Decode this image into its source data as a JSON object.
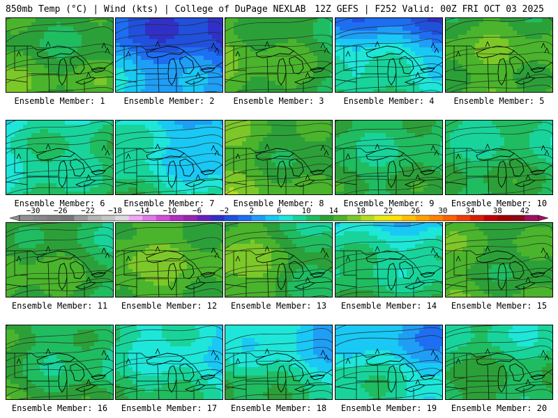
{
  "header": {
    "left": "850mb Temp (°C) | Wind (kts) | College of DuPage NEXLAB",
    "right": "12Z GEFS | F252 Valid: 00Z FRI OCT 03 2025"
  },
  "member_label_prefix": "Ensemble Member:",
  "members": [
    {
      "id": 1,
      "label": "Ensemble Member: 1",
      "west": 14,
      "east": 12,
      "north": 12,
      "south": 16
    },
    {
      "id": 2,
      "label": "Ensemble Member: 2",
      "west": 4,
      "east": -2,
      "north": -5,
      "south": 8
    },
    {
      "id": 3,
      "label": "Ensemble Member: 3",
      "west": 17,
      "east": 10,
      "north": 14,
      "south": 15
    },
    {
      "id": 4,
      "label": "Ensemble Member: 4",
      "west": 8,
      "east": 2,
      "north": -3,
      "south": 17
    },
    {
      "id": 5,
      "label": "Ensemble Member: 5",
      "west": 15,
      "east": 15,
      "north": 13,
      "south": 16
    },
    {
      "id": 6,
      "label": "Ensemble Member: 6",
      "west": 6,
      "east": 12,
      "north": 8,
      "south": 12
    },
    {
      "id": 7,
      "label": "Ensemble Member: 7",
      "west": 12,
      "east": 2,
      "north": 2,
      "south": 11
    },
    {
      "id": 8,
      "label": "Ensemble Member: 8",
      "west": 16,
      "east": 10,
      "north": 14,
      "south": 16
    },
    {
      "id": 9,
      "label": "Ensemble Member: 9",
      "west": 11,
      "east": 11,
      "north": 10,
      "south": 13
    },
    {
      "id": 10,
      "label": "Ensemble Member: 10",
      "west": 12,
      "east": 11,
      "north": 8,
      "south": 13
    },
    {
      "id": 11,
      "label": "Ensemble Member: 11",
      "west": 16,
      "east": 10,
      "north": 12,
      "south": 15
    },
    {
      "id": 12,
      "label": "Ensemble Member: 12",
      "west": 17,
      "east": 14,
      "north": 15,
      "south": 15
    },
    {
      "id": 13,
      "label": "Ensemble Member: 13",
      "west": 20,
      "east": 8,
      "north": 12,
      "south": 15
    },
    {
      "id": 14,
      "label": "Ensemble Member: 14",
      "west": 11,
      "east": 8,
      "north": 2,
      "south": 15
    },
    {
      "id": 15,
      "label": "Ensemble Member: 15",
      "west": 15,
      "east": 12,
      "north": 13,
      "south": 15
    },
    {
      "id": 16,
      "label": "Ensemble Member: 16",
      "west": 14,
      "east": 8,
      "north": 10,
      "south": 14
    },
    {
      "id": 17,
      "label": "Ensemble Member: 17",
      "west": 11,
      "east": 4,
      "north": 6,
      "south": 12
    },
    {
      "id": 18,
      "label": "Ensemble Member: 18",
      "west": 12,
      "east": 4,
      "north": 2,
      "south": 14
    },
    {
      "id": 19,
      "label": "Ensemble Member: 19",
      "west": 10,
      "east": 2,
      "north": 2,
      "south": 12
    },
    {
      "id": 20,
      "label": "Ensemble Member: 20",
      "west": 12,
      "east": 10,
      "north": 8,
      "south": 14
    }
  ],
  "colorbar": {
    "unit": "°C",
    "labels": [
      "−30",
      "−26",
      "−22",
      "−18",
      "−14",
      "−10",
      "−6",
      "−2",
      "2",
      "6",
      "10",
      "14",
      "18",
      "22",
      "26",
      "30",
      "34",
      "38",
      "42"
    ],
    "min": -32,
    "max": 44,
    "step": 2,
    "colors": [
      "#909090",
      "#888888",
      "#808080",
      "#787878",
      "#9a9a9a",
      "#b4b4b4",
      "#c6c6c6",
      "#dcdcdc",
      "#f2a6f2",
      "#e07ae8",
      "#cf4fd8",
      "#b42ec4",
      "#9a24b0",
      "#6a20c0",
      "#3030c8",
      "#2050dc",
      "#1e6ef2",
      "#1f9ef6",
      "#19c8f4",
      "#1ee6d8",
      "#18d49a",
      "#20bc60",
      "#2ca038",
      "#4ab42c",
      "#7cc828",
      "#b6dc1e",
      "#e6ec12",
      "#ffe200",
      "#ffc000",
      "#ffa000",
      "#ff8200",
      "#ff6000",
      "#f03c00",
      "#d81e00",
      "#c00000",
      "#a00000",
      "#900818",
      "#a01060"
    ]
  }
}
